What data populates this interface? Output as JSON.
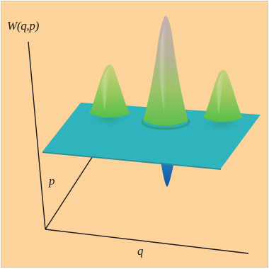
{
  "figure": {
    "background_color": "#fdd39c",
    "plane_color": "#2fb3bd",
    "peak_colors": {
      "base": "#56c24a",
      "mid": "#a9c873",
      "top": "#c2b0ad"
    },
    "dip_color": "#1565b3",
    "axis_color": "#1a1a1a",
    "axes": {
      "vertical_label": "W(q,p)",
      "depth_label": "p",
      "horizontal_label": "q"
    },
    "features": [
      {
        "name": "left-peak",
        "kind": "positive",
        "relative_height": 0.4
      },
      {
        "name": "central-peak",
        "kind": "positive",
        "relative_height": 1.0
      },
      {
        "name": "right-peak",
        "kind": "positive",
        "relative_height": 0.4
      },
      {
        "name": "central-dip",
        "kind": "negative",
        "relative_height": -0.25
      }
    ]
  }
}
